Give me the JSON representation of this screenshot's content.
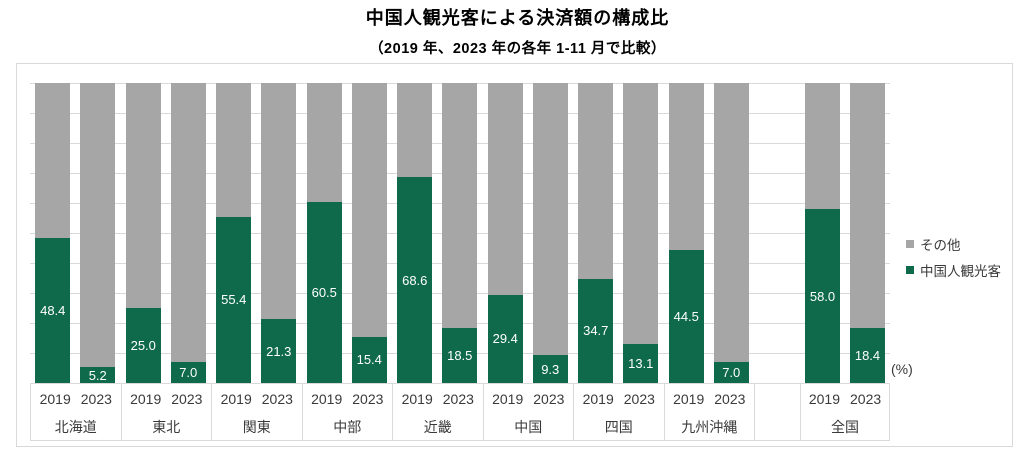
{
  "header": {
    "title": "中国人観光客による決済額の構成比",
    "subtitle": "（2019 年、2023 年の各年 1-11 月で比較）"
  },
  "legend": {
    "items": [
      {
        "label": "その他",
        "color": "#A6A6A6"
      },
      {
        "label": "中国人観光客",
        "color": "#0E6A4B"
      }
    ]
  },
  "chart_data": {
    "type": "bar",
    "stacked": true,
    "stack_total": 100,
    "unit": "%",
    "unit_display": "(%)",
    "ylim": [
      0,
      100
    ],
    "grid_interval": 10,
    "grid": true,
    "legend_position": "right",
    "gap_before_last_category": true,
    "categories": [
      "北海道",
      "東北",
      "関東",
      "中部",
      "近畿",
      "中国",
      "四国",
      "九州沖縄",
      "全国"
    ],
    "years": [
      "2019",
      "2023"
    ],
    "series": [
      {
        "name": "中国人観光客",
        "color": "#0E6A4B",
        "values": {
          "2019": [
            48.4,
            25.0,
            55.4,
            60.5,
            68.6,
            29.4,
            34.7,
            44.5,
            58.0
          ],
          "2023": [
            5.2,
            7.0,
            21.3,
            15.4,
            18.5,
            9.3,
            13.1,
            7.0,
            18.4
          ]
        }
      },
      {
        "name": "その他",
        "color": "#A6A6A6",
        "values": "remainder to 100%"
      }
    ]
  }
}
